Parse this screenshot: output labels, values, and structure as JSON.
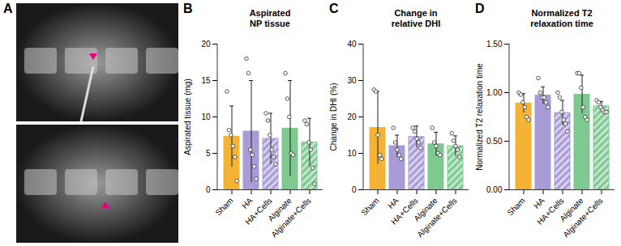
{
  "image_panel": {
    "panel_label": "A"
  },
  "chart_data": [
    {
      "type": "bar",
      "panel_label": "B",
      "title": "Aspirated\nNP tissue",
      "y_label": "Aspirated tissue (mg)",
      "categories": [
        "Sham",
        "HA",
        "HA+Cells",
        "Alginate",
        "Alginate+Cells"
      ],
      "values": [
        7.3,
        8.0,
        7.0,
        8.4,
        6.5
      ],
      "errors": [
        4.2,
        7.0,
        3.5,
        6.6,
        3.3
      ],
      "points": [
        [
          13.5,
          8.2,
          7.5,
          6.0,
          4.5,
          1.2
        ],
        [
          18.0,
          16.0,
          5.5,
          4.8,
          3.2,
          1.5
        ],
        [
          10.5,
          9.5,
          7.5,
          5.5,
          4.5,
          3.5
        ],
        [
          16.0,
          12.5,
          10.0,
          5.0,
          4.8
        ],
        [
          9.5,
          9.0,
          6.5,
          5.5,
          3.0,
          0.8
        ]
      ],
      "colors": [
        "#F5B335",
        "#A99BD6",
        "#A99BD6",
        "#7DC98F",
        "#7DC98F"
      ],
      "ylim": [
        0,
        20
      ],
      "yticks": [
        0,
        5,
        10,
        15,
        20
      ]
    },
    {
      "type": "bar",
      "panel_label": "C",
      "title": "Change in\nrelative DHI",
      "y_label": "Change in DHI (%)",
      "categories": [
        "Sham",
        "HA",
        "HA+Cells",
        "Alginate",
        "Alginate+Cells"
      ],
      "values": [
        17.0,
        12.0,
        14.5,
        12.5,
        12.0
      ],
      "errors": [
        10.0,
        3.0,
        3.0,
        3.3,
        2.8
      ],
      "points": [
        [
          27.5,
          27.0,
          15.0,
          9.5,
          8.5
        ],
        [
          17.0,
          13.0,
          11.0,
          9.5,
          8.5
        ],
        [
          17.0,
          16.0,
          14.0,
          13.0,
          11.5
        ],
        [
          17.0,
          13.0,
          12.0,
          10.0,
          9.5
        ],
        [
          15.5,
          13.5,
          12.0,
          11.0,
          9.0
        ]
      ],
      "colors": [
        "#F5B335",
        "#A99BD6",
        "#A99BD6",
        "#7DC98F",
        "#7DC98F"
      ],
      "ylim": [
        0,
        40
      ],
      "yticks": [
        0,
        10,
        20,
        30,
        40
      ]
    },
    {
      "type": "bar",
      "panel_label": "D",
      "title": "Normalized T2\nrelaxation time",
      "y_label": "Normalized T2 relaxation time",
      "categories": [
        "Sham",
        "HA",
        "HA+Cells",
        "Alginate",
        "Alginate+Cells"
      ],
      "values": [
        0.89,
        0.97,
        0.79,
        0.98,
        0.86
      ],
      "errors": [
        0.1,
        0.09,
        0.13,
        0.2,
        0.05
      ],
      "points": [
        [
          1.0,
          0.98,
          0.9,
          0.85,
          0.75,
          0.72
        ],
        [
          1.15,
          1.0,
          0.95,
          0.95,
          0.9,
          0.85
        ],
        [
          1.0,
          0.95,
          0.8,
          0.72,
          0.68,
          0.6
        ],
        [
          1.2,
          1.2,
          1.05,
          0.85,
          0.75,
          0.72
        ],
        [
          0.92,
          0.9,
          0.85,
          0.82,
          0.8,
          0.8
        ]
      ],
      "colors": [
        "#F5B335",
        "#A99BD6",
        "#A99BD6",
        "#7DC98F",
        "#7DC98F"
      ],
      "ylim": [
        0,
        1.5
      ],
      "yticks": [
        {
          "value": 0,
          "label": "0.00"
        },
        {
          "value": 0.5,
          "label": "0.50"
        },
        {
          "value": 1,
          "label": "1.00"
        },
        {
          "value": 1.5,
          "label": "1.50"
        }
      ]
    }
  ]
}
